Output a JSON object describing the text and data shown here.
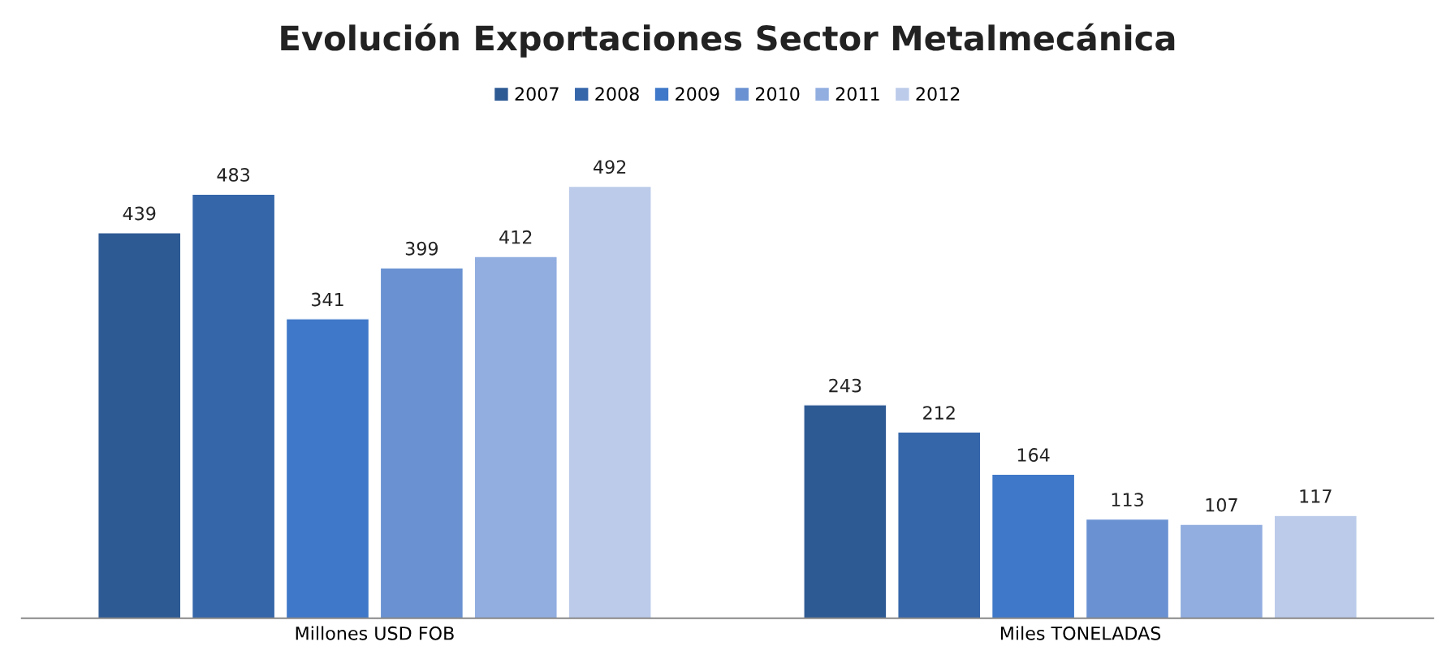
{
  "chart_data": {
    "type": "bar",
    "title": "Evolución Exportaciones Sector Metalmecánica",
    "categories": [
      "Millones USD FOB",
      "Miles TONELADAS"
    ],
    "series": [
      {
        "name": "2007",
        "color": "#2e5a94",
        "values": [
          439,
          243
        ]
      },
      {
        "name": "2008",
        "color": "#3566aa",
        "values": [
          483,
          212
        ]
      },
      {
        "name": "2009",
        "color": "#3f78c8",
        "values": [
          341,
          164
        ]
      },
      {
        "name": "2010",
        "color": "#6a92d2",
        "values": [
          399,
          113
        ]
      },
      {
        "name": "2011",
        "color": "#92aee0",
        "values": [
          412,
          107
        ]
      },
      {
        "name": "2012",
        "color": "#bccbea",
        "values": [
          492,
          117
        ]
      }
    ],
    "data_labels": true,
    "legend": "top"
  }
}
